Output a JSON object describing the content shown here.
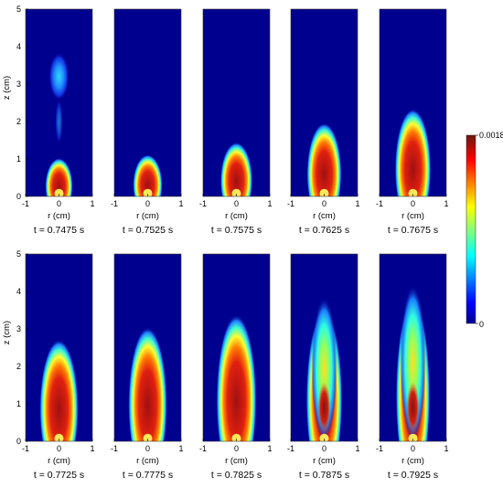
{
  "chart_data": {
    "type": "heatmap",
    "xlabel": "r (cm)",
    "ylabel": "z (cm)",
    "xlim": [
      -1,
      1
    ],
    "ylim": [
      0,
      5
    ],
    "xticks": [
      "-1",
      "0",
      "1"
    ],
    "yticks": [
      "0",
      "1",
      "2",
      "3",
      "4",
      "5"
    ],
    "colormap": "jet",
    "colorbar": {
      "min": 0,
      "max": 0.0018,
      "min_label": "0",
      "max_label": "0.0018"
    },
    "colors": {
      "background": "#ffffff",
      "panel_fill": "#00008f"
    },
    "panels": [
      {
        "label": "t = 0.7475 s",
        "row": 0,
        "col": 0,
        "show_ylabel": true
      },
      {
        "label": "t = 0.7525 s",
        "row": 0,
        "col": 1,
        "show_ylabel": false
      },
      {
        "label": "t = 0.7575 s",
        "row": 0,
        "col": 2,
        "show_ylabel": false
      },
      {
        "label": "t = 0.7625 s",
        "row": 0,
        "col": 3,
        "show_ylabel": false
      },
      {
        "label": "t = 0.7675 s",
        "row": 0,
        "col": 4,
        "show_ylabel": false
      },
      {
        "label": "t = 0.7725 s",
        "row": 1,
        "col": 0,
        "show_ylabel": true
      },
      {
        "label": "t = 0.7775 s",
        "row": 1,
        "col": 1,
        "show_ylabel": false
      },
      {
        "label": "t = 0.7825 s",
        "row": 1,
        "col": 2,
        "show_ylabel": false
      },
      {
        "label": "t = 0.7875 s",
        "row": 1,
        "col": 3,
        "show_ylabel": false
      },
      {
        "label": "t = 0.7925 s",
        "row": 1,
        "col": 4,
        "show_ylabel": false
      }
    ]
  }
}
